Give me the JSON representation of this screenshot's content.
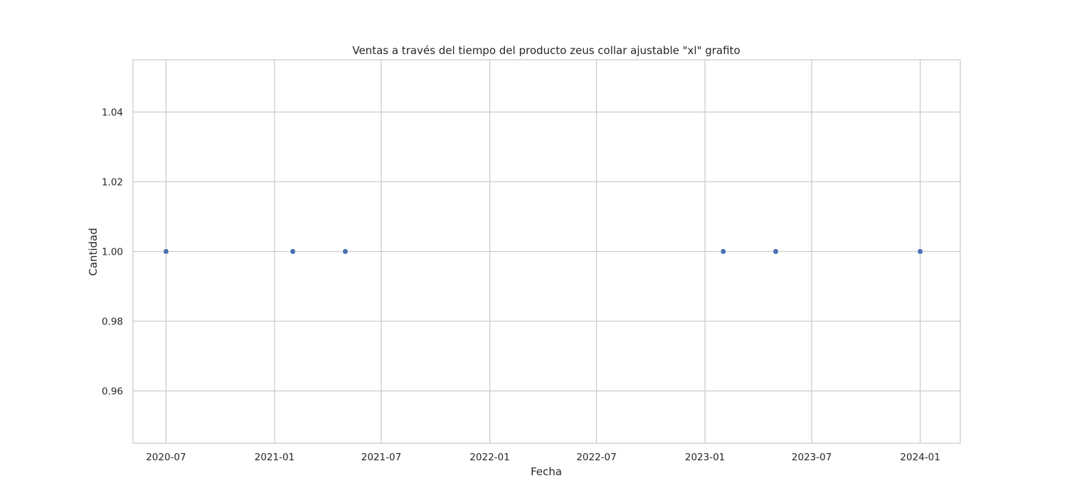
{
  "chart_data": {
    "type": "scatter",
    "title": "Ventas a través del tiempo del producto zeus collar ajustable \"xl\" grafito",
    "xlabel": "Fecha",
    "ylabel": "Cantidad",
    "x_axis_type": "date",
    "xlim": [
      "2020-05-06",
      "2024-03-09"
    ],
    "ylim": [
      0.945,
      1.055
    ],
    "x_ticks": [
      "2020-07",
      "2021-01",
      "2021-07",
      "2022-01",
      "2022-07",
      "2023-01",
      "2023-07",
      "2024-01"
    ],
    "y_ticks": [
      "0.96",
      "0.98",
      "1.00",
      "1.02",
      "1.04"
    ],
    "grid": true,
    "legend": "none",
    "marker_color": "#4c72b0",
    "grid_color": "#cccccc",
    "spine_color": "#cccccc",
    "series": [
      {
        "points": [
          {
            "x": "2020-07-01",
            "y": 1
          },
          {
            "x": "2021-02-01",
            "y": 1
          },
          {
            "x": "2021-05-01",
            "y": 1
          },
          {
            "x": "2023-02-01",
            "y": 1
          },
          {
            "x": "2023-05-01",
            "y": 1
          },
          {
            "x": "2024-01-01",
            "y": 1
          }
        ]
      }
    ]
  }
}
